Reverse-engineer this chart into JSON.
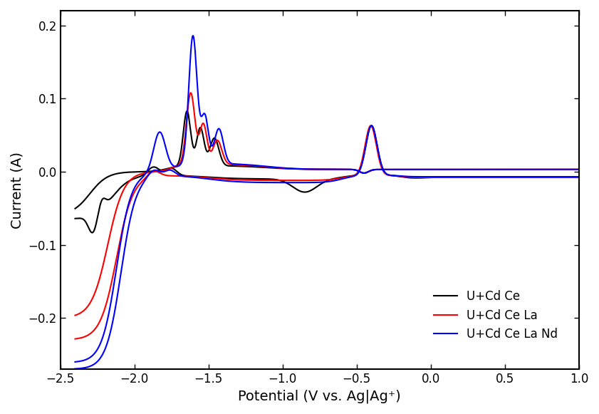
{
  "title": "",
  "xlabel": "Potential (V vs. Ag|Ag⁺)",
  "ylabel": "Current (A)",
  "xlim": [
    -2.5,
    1.0
  ],
  "ylim": [
    -0.27,
    0.22
  ],
  "xticks": [
    -2.5,
    -2.0,
    -1.5,
    -1.0,
    -0.5,
    0.0,
    0.5,
    1.0
  ],
  "yticks": [
    -0.2,
    -0.1,
    0.0,
    0.1,
    0.2
  ],
  "legend_labels": [
    "U+Cd Ce",
    "U+Cd Ce La",
    "U+Cd Ce La Nd"
  ],
  "colors": [
    "black",
    "red",
    "blue"
  ],
  "linewidth": 1.5,
  "background_color": "#ffffff"
}
